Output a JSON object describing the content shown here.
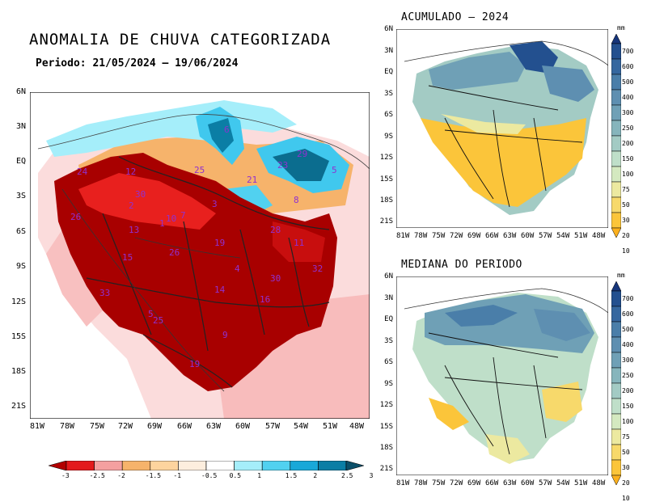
{
  "main_map": {
    "title": "ANOMALIA DE CHUVA CATEGORIZADA",
    "period": "Periodo: 21/05/2024 – 19/06/2024",
    "y_ticks": [
      "6N",
      "3N",
      "EQ",
      "3S",
      "6S",
      "9S",
      "12S",
      "15S",
      "18S",
      "21S"
    ],
    "x_ticks": [
      "81W",
      "78W",
      "75W",
      "72W",
      "69W",
      "66W",
      "63W",
      "60W",
      "57W",
      "54W",
      "51W",
      "48W"
    ],
    "basin_labels": [
      "6",
      "29",
      "24",
      "12",
      "25",
      "21",
      "23",
      "5",
      "30",
      "8",
      "26",
      "2",
      "3",
      "7",
      "10",
      "13",
      "1",
      "28",
      "19",
      "11",
      "15",
      "26",
      "4",
      "32",
      "33",
      "30",
      "25",
      "14",
      "16",
      "5",
      "9",
      "19"
    ],
    "colorbar": {
      "labels": [
        "-3",
        "-2.5",
        "-2",
        "-1.5",
        "-1",
        "-0.5",
        "0.5",
        "1",
        "1.5",
        "2",
        "2.5",
        "3"
      ],
      "colors": [
        "#b20000",
        "#e31a1c",
        "#f4a0a0",
        "#f6b36b",
        "#fdd49e",
        "#fdeede",
        "#ffffff",
        "#a5eefa",
        "#51d1f0",
        "#19a8d8",
        "#0b7ea5",
        "#0b4f69"
      ]
    },
    "colors": {
      "dry_extreme": "#a80000",
      "dry": "#e8201e",
      "dry_light": "#f8b4b4",
      "wet": "#40c8ee",
      "wet_strong": "#0b6d8f",
      "basin_label": "#9030d0"
    }
  },
  "acumulado_map": {
    "title": "ACUMULADO – 2024",
    "y_ticks": [
      "6N",
      "3N",
      "EQ",
      "3S",
      "6S",
      "9S",
      "12S",
      "15S",
      "18S",
      "21S"
    ],
    "x_ticks": [
      "81W",
      "78W",
      "75W",
      "72W",
      "69W",
      "66W",
      "63W",
      "60W",
      "57W",
      "54W",
      "51W",
      "48W"
    ]
  },
  "mediana_map": {
    "title": "MEDIANA DO PERIODO",
    "y_ticks": [
      "6N",
      "3N",
      "EQ",
      "3S",
      "6S",
      "9S",
      "12S",
      "15S",
      "18S",
      "21S"
    ],
    "x_ticks": [
      "81W",
      "78W",
      "75W",
      "72W",
      "69W",
      "66W",
      "63W",
      "60W",
      "57W",
      "54W",
      "51W",
      "48W"
    ]
  },
  "precip_colorbar": {
    "unit": "mm",
    "labels": [
      "700",
      "600",
      "500",
      "400",
      "300",
      "250",
      "200",
      "150",
      "100",
      "75",
      "50",
      "30",
      "20",
      "10"
    ],
    "colors": [
      "#16357a",
      "#23508f",
      "#35679f",
      "#4a7ea9",
      "#5e8fb1",
      "#6fa0b6",
      "#86b5bc",
      "#a3cbc4",
      "#bfdfc9",
      "#d4e9c0",
      "#ece9a0",
      "#f7d96b",
      "#fbc53a",
      "#fbb01d"
    ]
  }
}
